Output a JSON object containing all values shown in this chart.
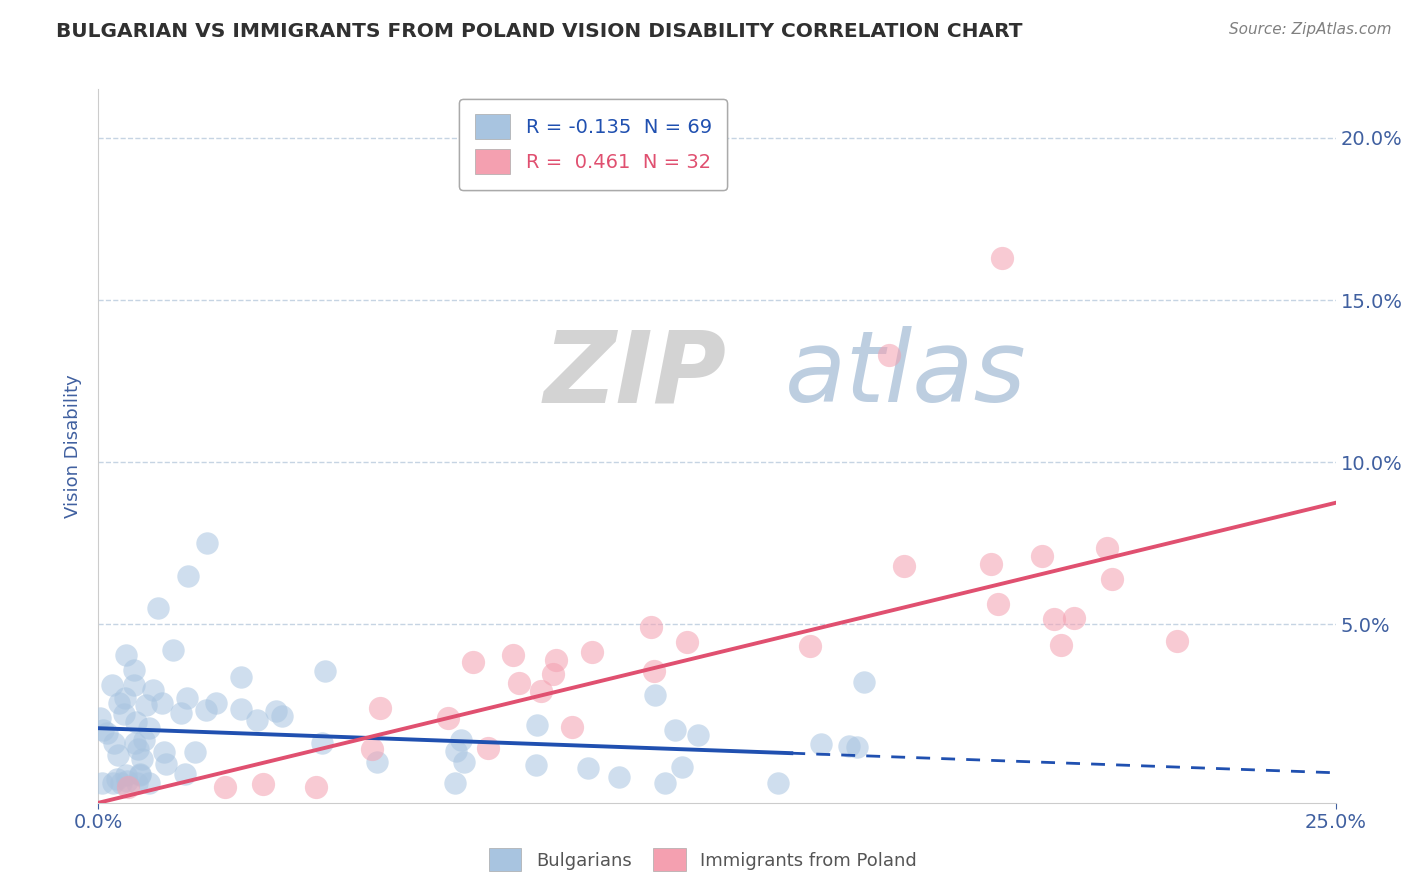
{
  "title": "BULGARIAN VS IMMIGRANTS FROM POLAND VISION DISABILITY CORRELATION CHART",
  "source": "Source: ZipAtlas.com",
  "ylabel": "Vision Disability",
  "xlabel": "",
  "xlim": [
    0.0,
    0.25
  ],
  "ylim": [
    -0.005,
    0.215
  ],
  "xticks": [
    0.0,
    0.25
  ],
  "xticklabels": [
    "0.0%",
    "25.0%"
  ],
  "yticks": [
    0.05,
    0.1,
    0.15,
    0.2
  ],
  "yticklabels": [
    "5.0%",
    "10.0%",
    "15.0%",
    "20.0%"
  ],
  "bulgarian_R": -0.135,
  "bulgarian_N": 69,
  "poland_R": 0.461,
  "poland_N": 32,
  "bulgarian_color": "#a8c4e0",
  "poland_color": "#f4a0b0",
  "bulgarian_line_color": "#2050b0",
  "poland_line_color": "#e05070",
  "background_color": "#ffffff",
  "grid_color": "#c0d0e0",
  "watermark_zip": "ZIP",
  "watermark_atlas": "atlas",
  "title_color": "#303030",
  "axis_label_color": "#4060a0",
  "tick_color": "#4060a0",
  "source_color": "#808080",
  "legend_label_bulgarian": "Bulgarians",
  "legend_label_poland": "Immigrants from Poland",
  "bulg_line_intercept": 0.018,
  "bulg_line_slope": -0.055,
  "pol_line_intercept": -0.005,
  "pol_line_slope": 0.37
}
